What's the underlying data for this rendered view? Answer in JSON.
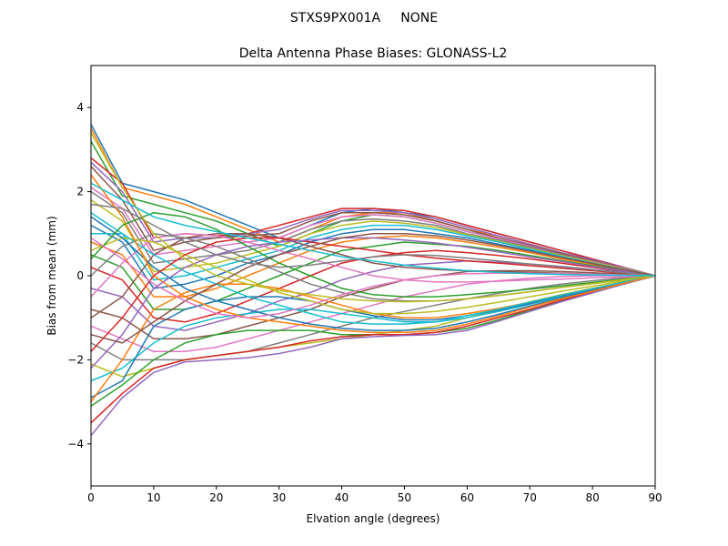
{
  "figure": {
    "suptitle": "STXS9PX001A     NONE"
  },
  "chart_data": {
    "type": "line",
    "title": "Delta Antenna Phase Biases: GLONASS-L2",
    "xlabel": "Elvation angle (degrees)",
    "ylabel": "Bias from mean (mm)",
    "xlim": [
      0,
      90
    ],
    "ylim": [
      -5,
      5
    ],
    "xticks": [
      0,
      10,
      20,
      30,
      40,
      50,
      60,
      70,
      80,
      90
    ],
    "yticks": [
      -4,
      -2,
      0,
      2,
      4
    ],
    "ytick_labels": [
      "−4",
      "−2",
      "0",
      "2",
      "4"
    ],
    "grid": false,
    "legend": "none",
    "x": [
      0,
      5,
      10,
      15,
      20,
      25,
      30,
      35,
      40,
      45,
      50,
      55,
      60,
      65,
      70,
      75,
      80,
      85,
      90
    ],
    "colors": [
      "#1f77b4",
      "#ff7f0e",
      "#2ca02c",
      "#d62728",
      "#9467bd",
      "#8c564b",
      "#e377c2",
      "#7f7f7f",
      "#bcbd22",
      "#17becf"
    ],
    "series": [
      {
        "values": [
          3.6,
          2.2,
          2.0,
          1.8,
          1.5,
          1.2,
          0.9,
          1.2,
          1.5,
          1.6,
          1.5,
          1.4,
          1.2,
          1.0,
          0.8,
          0.6,
          0.4,
          0.2,
          0.0
        ]
      },
      {
        "values": [
          3.5,
          2.1,
          1.9,
          1.7,
          1.4,
          1.1,
          0.8,
          1.1,
          1.4,
          1.5,
          1.5,
          1.3,
          1.1,
          0.95,
          0.75,
          0.55,
          0.35,
          0.18,
          0.0
        ]
      },
      {
        "values": [
          3.2,
          1.9,
          1.7,
          1.5,
          1.3,
          1.0,
          0.7,
          1.0,
          1.3,
          1.45,
          1.4,
          1.25,
          1.05,
          0.9,
          0.7,
          0.5,
          0.33,
          0.17,
          0.0
        ]
      },
      {
        "values": [
          2.8,
          2.2,
          0.9,
          1.0,
          0.95,
          1.0,
          1.2,
          1.4,
          1.6,
          1.6,
          1.55,
          1.4,
          1.2,
          1.0,
          0.8,
          0.6,
          0.4,
          0.2,
          0.0
        ]
      },
      {
        "values": [
          2.7,
          2.0,
          0.8,
          0.9,
          0.9,
          1.0,
          1.1,
          1.35,
          1.55,
          1.55,
          1.5,
          1.35,
          1.15,
          0.95,
          0.75,
          0.55,
          0.38,
          0.19,
          0.0
        ]
      },
      {
        "values": [
          2.6,
          1.8,
          0.6,
          0.8,
          0.9,
          0.95,
          1.0,
          1.3,
          1.5,
          1.5,
          1.45,
          1.3,
          1.1,
          0.9,
          0.72,
          0.53,
          0.36,
          0.18,
          0.0
        ]
      },
      {
        "values": [
          2.1,
          1.6,
          0.5,
          0.6,
          0.7,
          0.8,
          0.9,
          1.2,
          1.4,
          1.45,
          1.4,
          1.25,
          1.05,
          0.88,
          0.7,
          0.5,
          0.34,
          0.17,
          0.0
        ]
      },
      {
        "values": [
          2.0,
          1.5,
          0.3,
          0.4,
          0.5,
          0.6,
          0.8,
          1.1,
          1.3,
          1.35,
          1.3,
          1.2,
          1.0,
          0.85,
          0.68,
          0.5,
          0.33,
          0.16,
          0.0
        ]
      },
      {
        "values": [
          1.8,
          1.3,
          0.1,
          0.2,
          0.3,
          0.5,
          0.7,
          1.0,
          1.2,
          1.3,
          1.25,
          1.15,
          0.98,
          0.82,
          0.65,
          0.48,
          0.32,
          0.16,
          0.0
        ]
      },
      {
        "values": [
          1.5,
          1.0,
          -0.1,
          0.0,
          0.2,
          0.4,
          0.6,
          0.9,
          1.1,
          1.2,
          1.2,
          1.1,
          0.95,
          0.8,
          0.63,
          0.46,
          0.3,
          0.15,
          0.0
        ]
      },
      {
        "values": [
          1.2,
          0.8,
          -0.3,
          -0.2,
          0.0,
          0.3,
          0.5,
          0.8,
          1.0,
          1.1,
          1.1,
          1.0,
          0.9,
          0.75,
          0.6,
          0.44,
          0.29,
          0.14,
          0.0
        ]
      },
      {
        "values": [
          0.8,
          0.5,
          -0.5,
          -0.5,
          -0.3,
          0.0,
          0.3,
          0.6,
          0.8,
          0.9,
          0.95,
          0.9,
          0.8,
          0.68,
          0.55,
          0.4,
          0.27,
          0.13,
          0.0
        ]
      },
      {
        "values": [
          0.5,
          0.2,
          -0.8,
          -0.8,
          -0.6,
          -0.3,
          0.0,
          0.3,
          0.6,
          0.7,
          0.8,
          0.75,
          0.7,
          0.6,
          0.48,
          0.36,
          0.24,
          0.12,
          0.0
        ]
      },
      {
        "values": [
          0.2,
          -0.1,
          -1.0,
          -1.1,
          -0.9,
          -0.6,
          -0.3,
          0.0,
          0.3,
          0.45,
          0.55,
          0.6,
          0.55,
          0.48,
          0.4,
          0.3,
          0.2,
          0.1,
          0.0
        ]
      },
      {
        "values": [
          -0.3,
          -0.5,
          -1.2,
          -1.3,
          -1.1,
          -0.9,
          -0.6,
          -0.4,
          -0.1,
          0.1,
          0.25,
          0.3,
          0.35,
          0.32,
          0.28,
          0.22,
          0.15,
          0.08,
          0.0
        ]
      },
      {
        "values": [
          -0.8,
          -1.0,
          -1.5,
          -1.5,
          -1.4,
          -1.2,
          -1.0,
          -0.8,
          -0.5,
          -0.3,
          -0.1,
          0.0,
          0.1,
          0.12,
          0.12,
          0.1,
          0.07,
          0.04,
          0.0
        ]
      },
      {
        "values": [
          -1.2,
          -1.5,
          -1.8,
          -1.8,
          -1.7,
          -1.5,
          -1.3,
          -1.1,
          -0.9,
          -0.7,
          -0.5,
          -0.35,
          -0.2,
          -0.12,
          -0.06,
          -0.02,
          0.0,
          0.0,
          0.0
        ]
      },
      {
        "values": [
          -1.6,
          -2.0,
          -2.0,
          -2.0,
          -1.9,
          -1.8,
          -1.6,
          -1.4,
          -1.2,
          -1.0,
          -0.85,
          -0.7,
          -0.55,
          -0.42,
          -0.3,
          -0.2,
          -0.12,
          -0.05,
          0.0
        ]
      },
      {
        "values": [
          -2.1,
          -2.4,
          -2.2,
          -2.0,
          -1.9,
          -1.8,
          -1.7,
          -1.6,
          -1.5,
          -1.4,
          -1.3,
          -1.2,
          -1.0,
          -0.82,
          -0.62,
          -0.45,
          -0.3,
          -0.15,
          0.0
        ]
      },
      {
        "values": [
          -2.5,
          -2.2,
          -1.6,
          -1.2,
          -1.0,
          -0.9,
          -0.8,
          -0.8,
          -0.9,
          -1.0,
          -1.1,
          -1.1,
          -1.0,
          -0.85,
          -0.68,
          -0.5,
          -0.33,
          -0.16,
          0.0
        ]
      },
      {
        "values": [
          -2.9,
          -2.5,
          -1.2,
          -0.8,
          -0.6,
          -0.5,
          -0.5,
          -0.6,
          -0.8,
          -0.95,
          -1.05,
          -1.05,
          -0.95,
          -0.82,
          -0.66,
          -0.48,
          -0.32,
          -0.16,
          0.0
        ]
      },
      {
        "values": [
          -3.0,
          -2.0,
          -0.8,
          -0.4,
          -0.2,
          -0.2,
          -0.3,
          -0.5,
          -0.7,
          -0.9,
          -1.0,
          -1.0,
          -0.9,
          -0.78,
          -0.63,
          -0.46,
          -0.31,
          -0.15,
          0.0
        ]
      },
      {
        "values": [
          -3.1,
          -2.6,
          -2.0,
          -1.6,
          -1.4,
          -1.3,
          -1.3,
          -1.3,
          -1.4,
          -1.4,
          -1.4,
          -1.35,
          -1.25,
          -1.05,
          -0.82,
          -0.6,
          -0.4,
          -0.2,
          0.0
        ]
      },
      {
        "values": [
          -3.5,
          -2.8,
          -2.2,
          -2.0,
          -1.9,
          -1.8,
          -1.7,
          -1.55,
          -1.45,
          -1.4,
          -1.4,
          -1.35,
          -1.2,
          -1.0,
          -0.8,
          -0.58,
          -0.39,
          -0.19,
          0.0
        ]
      },
      {
        "values": [
          -3.8,
          -2.9,
          -2.3,
          -2.05,
          -2.0,
          -1.95,
          -1.85,
          -1.7,
          -1.5,
          -1.45,
          -1.42,
          -1.4,
          -1.3,
          -1.08,
          -0.85,
          -0.62,
          -0.41,
          -0.2,
          0.0
        ]
      },
      {
        "values": [
          -1.0,
          -0.5,
          0.5,
          0.9,
          1.0,
          1.0,
          0.9,
          0.7,
          0.5,
          0.3,
          0.2,
          0.15,
          0.12,
          0.1,
          0.08,
          0.06,
          0.04,
          0.02,
          0.0
        ]
      },
      {
        "values": [
          -0.5,
          0.3,
          0.9,
          1.0,
          0.95,
          0.8,
          0.6,
          0.4,
          0.2,
          0.0,
          -0.1,
          -0.15,
          -0.15,
          -0.13,
          -0.1,
          -0.08,
          -0.05,
          -0.03,
          0.0
        ]
      },
      {
        "values": [
          0.0,
          0.7,
          1.0,
          0.9,
          0.7,
          0.4,
          0.1,
          -0.2,
          -0.4,
          -0.55,
          -0.6,
          -0.6,
          -0.55,
          -0.47,
          -0.38,
          -0.28,
          -0.19,
          -0.09,
          0.0
        ]
      },
      {
        "values": [
          0.6,
          0.9,
          0.8,
          0.5,
          0.2,
          -0.1,
          -0.4,
          -0.6,
          -0.8,
          -0.9,
          -0.9,
          -0.85,
          -0.75,
          -0.63,
          -0.5,
          -0.37,
          -0.25,
          -0.12,
          0.0
        ]
      },
      {
        "values": [
          1.0,
          1.0,
          0.5,
          0.1,
          -0.2,
          -0.5,
          -0.7,
          -0.9,
          -1.1,
          -1.15,
          -1.15,
          -1.1,
          -0.95,
          -0.8,
          -0.63,
          -0.46,
          -0.31,
          -0.15,
          0.0
        ]
      },
      {
        "values": [
          1.4,
          0.9,
          0.2,
          -0.3,
          -0.6,
          -0.8,
          -1.0,
          -1.15,
          -1.25,
          -1.3,
          -1.3,
          -1.25,
          -1.1,
          -0.92,
          -0.72,
          -0.53,
          -0.35,
          -0.18,
          0.0
        ]
      },
      {
        "values": [
          2.4,
          1.4,
          0.0,
          -0.5,
          -0.8,
          -1.0,
          -1.1,
          -1.2,
          -1.3,
          -1.35,
          -1.35,
          -1.3,
          -1.15,
          -0.96,
          -0.75,
          -0.55,
          -0.37,
          -0.18,
          0.0
        ]
      },
      {
        "values": [
          0.4,
          1.2,
          1.5,
          1.4,
          1.1,
          0.7,
          0.3,
          0.0,
          -0.3,
          -0.45,
          -0.5,
          -0.5,
          -0.45,
          -0.39,
          -0.32,
          -0.24,
          -0.16,
          -0.08,
          0.0
        ]
      },
      {
        "values": [
          -1.8,
          -1.0,
          0.0,
          0.5,
          0.8,
          0.9,
          0.9,
          0.8,
          0.7,
          0.6,
          0.5,
          0.42,
          0.35,
          0.3,
          0.24,
          0.18,
          0.12,
          0.06,
          0.0
        ]
      },
      {
        "values": [
          -2.2,
          -1.4,
          -0.3,
          0.2,
          0.5,
          0.7,
          0.8,
          0.85,
          0.9,
          0.9,
          0.85,
          0.78,
          0.68,
          0.57,
          0.45,
          0.34,
          0.22,
          0.11,
          0.0
        ]
      },
      {
        "values": [
          -1.4,
          -1.6,
          -1.1,
          -0.6,
          -0.2,
          0.2,
          0.5,
          0.7,
          0.9,
          1.0,
          1.0,
          0.95,
          0.85,
          0.72,
          0.58,
          0.43,
          0.29,
          0.14,
          0.0
        ]
      },
      {
        "values": [
          0.9,
          0.4,
          -0.2,
          -0.6,
          -0.9,
          -1.0,
          -0.9,
          -0.7,
          -0.45,
          -0.25,
          -0.1,
          0.0,
          0.05,
          0.06,
          0.06,
          0.05,
          0.04,
          0.02,
          0.0
        ]
      },
      {
        "values": [
          1.7,
          1.6,
          1.2,
          0.8,
          0.5,
          0.3,
          0.2,
          0.25,
          0.35,
          0.45,
          0.5,
          0.48,
          0.42,
          0.35,
          0.28,
          0.21,
          0.14,
          0.07,
          0.0
        ]
      },
      {
        "values": [
          3.4,
          2.1,
          1.0,
          0.4,
          0.0,
          -0.2,
          -0.35,
          -0.45,
          -0.55,
          -0.6,
          -0.62,
          -0.6,
          -0.55,
          -0.47,
          -0.38,
          -0.28,
          -0.19,
          -0.09,
          0.0
        ]
      },
      {
        "values": [
          2.2,
          1.8,
          1.4,
          1.2,
          1.05,
          0.9,
          0.75,
          0.6,
          0.45,
          0.35,
          0.25,
          0.18,
          0.12,
          0.08,
          0.05,
          0.03,
          0.02,
          0.01,
          0.0
        ]
      }
    ]
  }
}
